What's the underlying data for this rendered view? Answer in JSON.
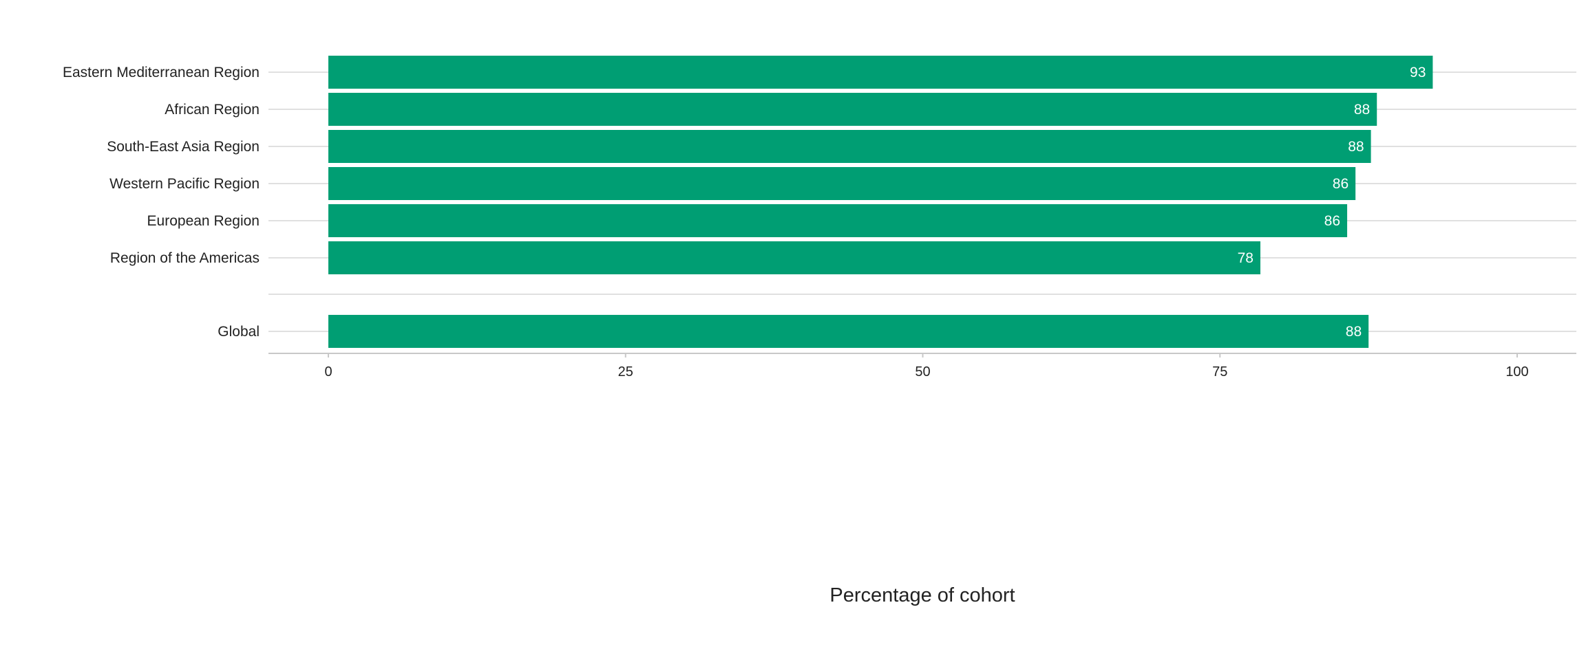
{
  "chart_data": {
    "type": "bar",
    "orientation": "horizontal",
    "categories": [
      "Eastern Mediterranean Region",
      "African Region",
      "South-East Asia Region",
      "Western Pacific Region",
      "European Region",
      "Region of the Americas",
      "Global"
    ],
    "values": [
      92.9,
      88.2,
      87.7,
      86.4,
      85.7,
      78.4,
      87.5
    ],
    "data_labels": [
      "93",
      "88",
      "88",
      "86",
      "86",
      "78",
      "88"
    ],
    "xlabel": "Percentage of cohort",
    "ylabel": "",
    "title": "",
    "xlim": [
      0,
      100
    ],
    "xticks": [
      "0",
      "25",
      "50",
      "75",
      "100"
    ],
    "grid": "horizontal",
    "bar_color": "#009E73",
    "legend": "none"
  }
}
